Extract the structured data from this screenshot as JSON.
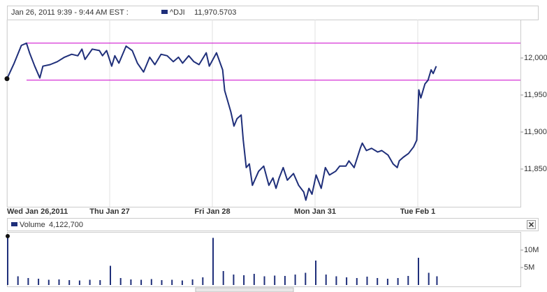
{
  "chart_data": [
    {
      "type": "line",
      "header": "Jan 26, 2011 9:39 - 9:44 AM EST :",
      "x": [
        0,
        0.07,
        0.14,
        0.19,
        0.22,
        0.27,
        0.32,
        0.35,
        0.42,
        0.49,
        0.56,
        0.63,
        0.69,
        0.73,
        0.76,
        0.83,
        0.9,
        0.93,
        0.97,
        1.02,
        1.05,
        1.09,
        1.16,
        1.22,
        1.27,
        1.33,
        1.39,
        1.44,
        1.5,
        1.56,
        1.62,
        1.67,
        1.71,
        1.77,
        1.82,
        1.87,
        1.94,
        1.97,
        2.04,
        2.1,
        2.12,
        2.18,
        2.21,
        2.24,
        2.28,
        2.3,
        2.33,
        2.36,
        2.39,
        2.45,
        2.5,
        2.55,
        2.59,
        2.62,
        2.65,
        2.69,
        2.73,
        2.79,
        2.84,
        2.89,
        2.91,
        2.94,
        2.97,
        3.01,
        3.06,
        3.1,
        3.14,
        3.2,
        3.24,
        3.3,
        3.33,
        3.38,
        3.44,
        3.46,
        3.5,
        3.55,
        3.61,
        3.65,
        3.71,
        3.76,
        3.8,
        3.82,
        3.86,
        3.91,
        3.96,
        3.99,
        4.01,
        4.03,
        4.07,
        4.1,
        4.13,
        4.15,
        4.18
      ],
      "series": [
        {
          "name": "^DJI",
          "value_label": "11,970.5703",
          "color": "#1f2f7a",
          "values": [
            11972,
            11993,
            12017,
            12020,
            12007,
            11989,
            11973,
            11989,
            11991,
            11995,
            12001,
            12005,
            12003,
            12012,
            11998,
            12012,
            12010,
            12003,
            12010,
            11989,
            12003,
            11993,
            12016,
            12010,
            11993,
            11981,
            12001,
            11991,
            12005,
            12003,
            11995,
            12001,
            11993,
            12003,
            11995,
            11991,
            12007,
            11989,
            12007,
            11984,
            11956,
            11927,
            11908,
            11918,
            11923,
            11890,
            11852,
            11857,
            11828,
            11847,
            11854,
            11828,
            11838,
            11824,
            11838,
            11852,
            11835,
            11844,
            11828,
            11819,
            11808,
            11824,
            11816,
            11842,
            11824,
            11852,
            11842,
            11847,
            11854,
            11854,
            11861,
            11852,
            11878,
            11885,
            11875,
            11878,
            11873,
            11875,
            11869,
            11857,
            11852,
            11861,
            11866,
            11871,
            11880,
            11889,
            11957,
            11946,
            11965,
            11970,
            11984,
            11979,
            11989
          ]
        }
      ],
      "xlim": [
        0,
        5
      ],
      "ylim": [
        11800,
        12050
      ],
      "xticks": [
        {
          "value": 0,
          "label": "Wed Jan 26,2011"
        },
        {
          "value": 1,
          "label": "Thu Jan 27"
        },
        {
          "value": 2,
          "label": "Fri Jan 28"
        },
        {
          "value": 3,
          "label": "Mon Jan 31"
        },
        {
          "value": 4,
          "label": "Tue Feb 1"
        }
      ],
      "yticks": [
        {
          "value": 11850,
          "label": "11,850"
        },
        {
          "value": 11900,
          "label": "11,900"
        },
        {
          "value": 11950,
          "label": "11,950"
        },
        {
          "value": 12000,
          "label": "12,000"
        }
      ],
      "grid": true,
      "reference_lines": {
        "values": [
          12020,
          11970
        ],
        "color": "#cc00cc"
      }
    },
    {
      "type": "bar",
      "x": [
        0,
        0.1,
        0.2,
        0.3,
        0.4,
        0.5,
        0.6,
        0.7,
        0.8,
        0.9,
        1,
        1.1,
        1.2,
        1.3,
        1.4,
        1.5,
        1.6,
        1.7,
        1.8,
        1.9,
        2,
        2.1,
        2.2,
        2.3,
        2.4,
        2.5,
        2.6,
        2.7,
        2.8,
        2.9,
        3,
        3.1,
        3.2,
        3.3,
        3.4,
        3.5,
        3.6,
        3.7,
        3.8,
        3.9,
        4,
        4.1,
        4.18
      ],
      "series": [
        {
          "name": "Volume",
          "value_label": "4,122,700",
          "color": "#1f2f7a",
          "values": [
            14000000,
            2500000,
            2000000,
            1800000,
            1500000,
            1600000,
            1400000,
            1300000,
            1500000,
            1400000,
            5500000,
            2000000,
            1600000,
            1500000,
            1700000,
            1400000,
            1500000,
            1300000,
            1600000,
            2200000,
            13500000,
            4000000,
            3000000,
            2800000,
            3200000,
            2500000,
            2700000,
            2600000,
            3000000,
            3500000,
            7000000,
            3000000,
            2500000,
            2200000,
            2000000,
            2400000,
            2000000,
            1800000,
            2000000,
            2600000,
            7800000,
            3500000,
            2500000
          ]
        }
      ],
      "xlim": [
        0,
        5
      ],
      "ylim": [
        0,
        15000000
      ],
      "yticks": [
        {
          "value": 5000000,
          "label": "5M"
        },
        {
          "value": 10000000,
          "label": "10M"
        }
      ],
      "grid": true
    }
  ]
}
